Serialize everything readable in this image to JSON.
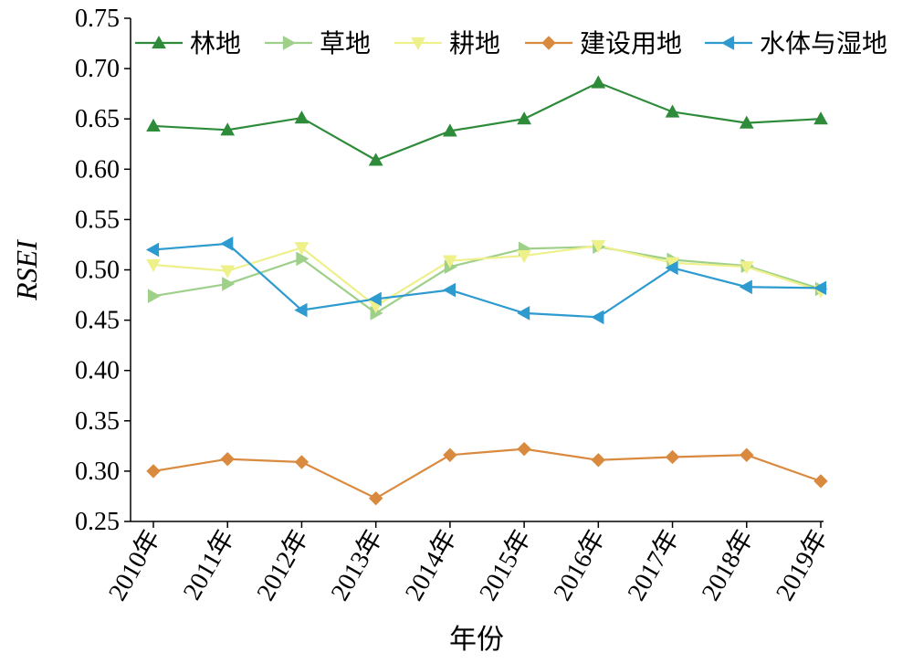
{
  "chart_data": {
    "type": "line",
    "title": "",
    "xlabel": "年份",
    "ylabel": "RSEI",
    "ylim": [
      0.25,
      0.75
    ],
    "yticks": [
      "0.25",
      "0.30",
      "0.35",
      "0.40",
      "0.45",
      "0.50",
      "0.55",
      "0.60",
      "0.65",
      "0.70",
      "0.75"
    ],
    "categories": [
      "2010年",
      "2011年",
      "2012年",
      "2013年",
      "2014年",
      "2015年",
      "2016年",
      "2017年",
      "2018年",
      "2019年"
    ],
    "legend_position": "top",
    "grid": false,
    "series": [
      {
        "name": "林地",
        "color": "#2e8b3a",
        "marker": "triangle-up",
        "values": [
          0.643,
          0.639,
          0.651,
          0.609,
          0.638,
          0.65,
          0.686,
          0.657,
          0.646,
          0.65
        ]
      },
      {
        "name": "草地",
        "color": "#9ed08a",
        "marker": "triangle-right",
        "values": [
          0.474,
          0.486,
          0.511,
          0.457,
          0.503,
          0.521,
          0.523,
          0.51,
          0.504,
          0.481
        ]
      },
      {
        "name": "耕地",
        "color": "#eef08a",
        "marker": "triangle-down",
        "values": [
          0.505,
          0.499,
          0.522,
          0.464,
          0.509,
          0.514,
          0.524,
          0.507,
          0.503,
          0.479
        ]
      },
      {
        "name": "建设用地",
        "color": "#d98a3f",
        "marker": "diamond",
        "values": [
          0.3,
          0.312,
          0.309,
          0.273,
          0.316,
          0.322,
          0.311,
          0.314,
          0.316,
          0.29
        ]
      },
      {
        "name": "水体与湿地",
        "color": "#2e9bd0",
        "marker": "triangle-left",
        "values": [
          0.52,
          0.526,
          0.46,
          0.471,
          0.48,
          0.457,
          0.453,
          0.502,
          0.483,
          0.482
        ]
      }
    ]
  }
}
